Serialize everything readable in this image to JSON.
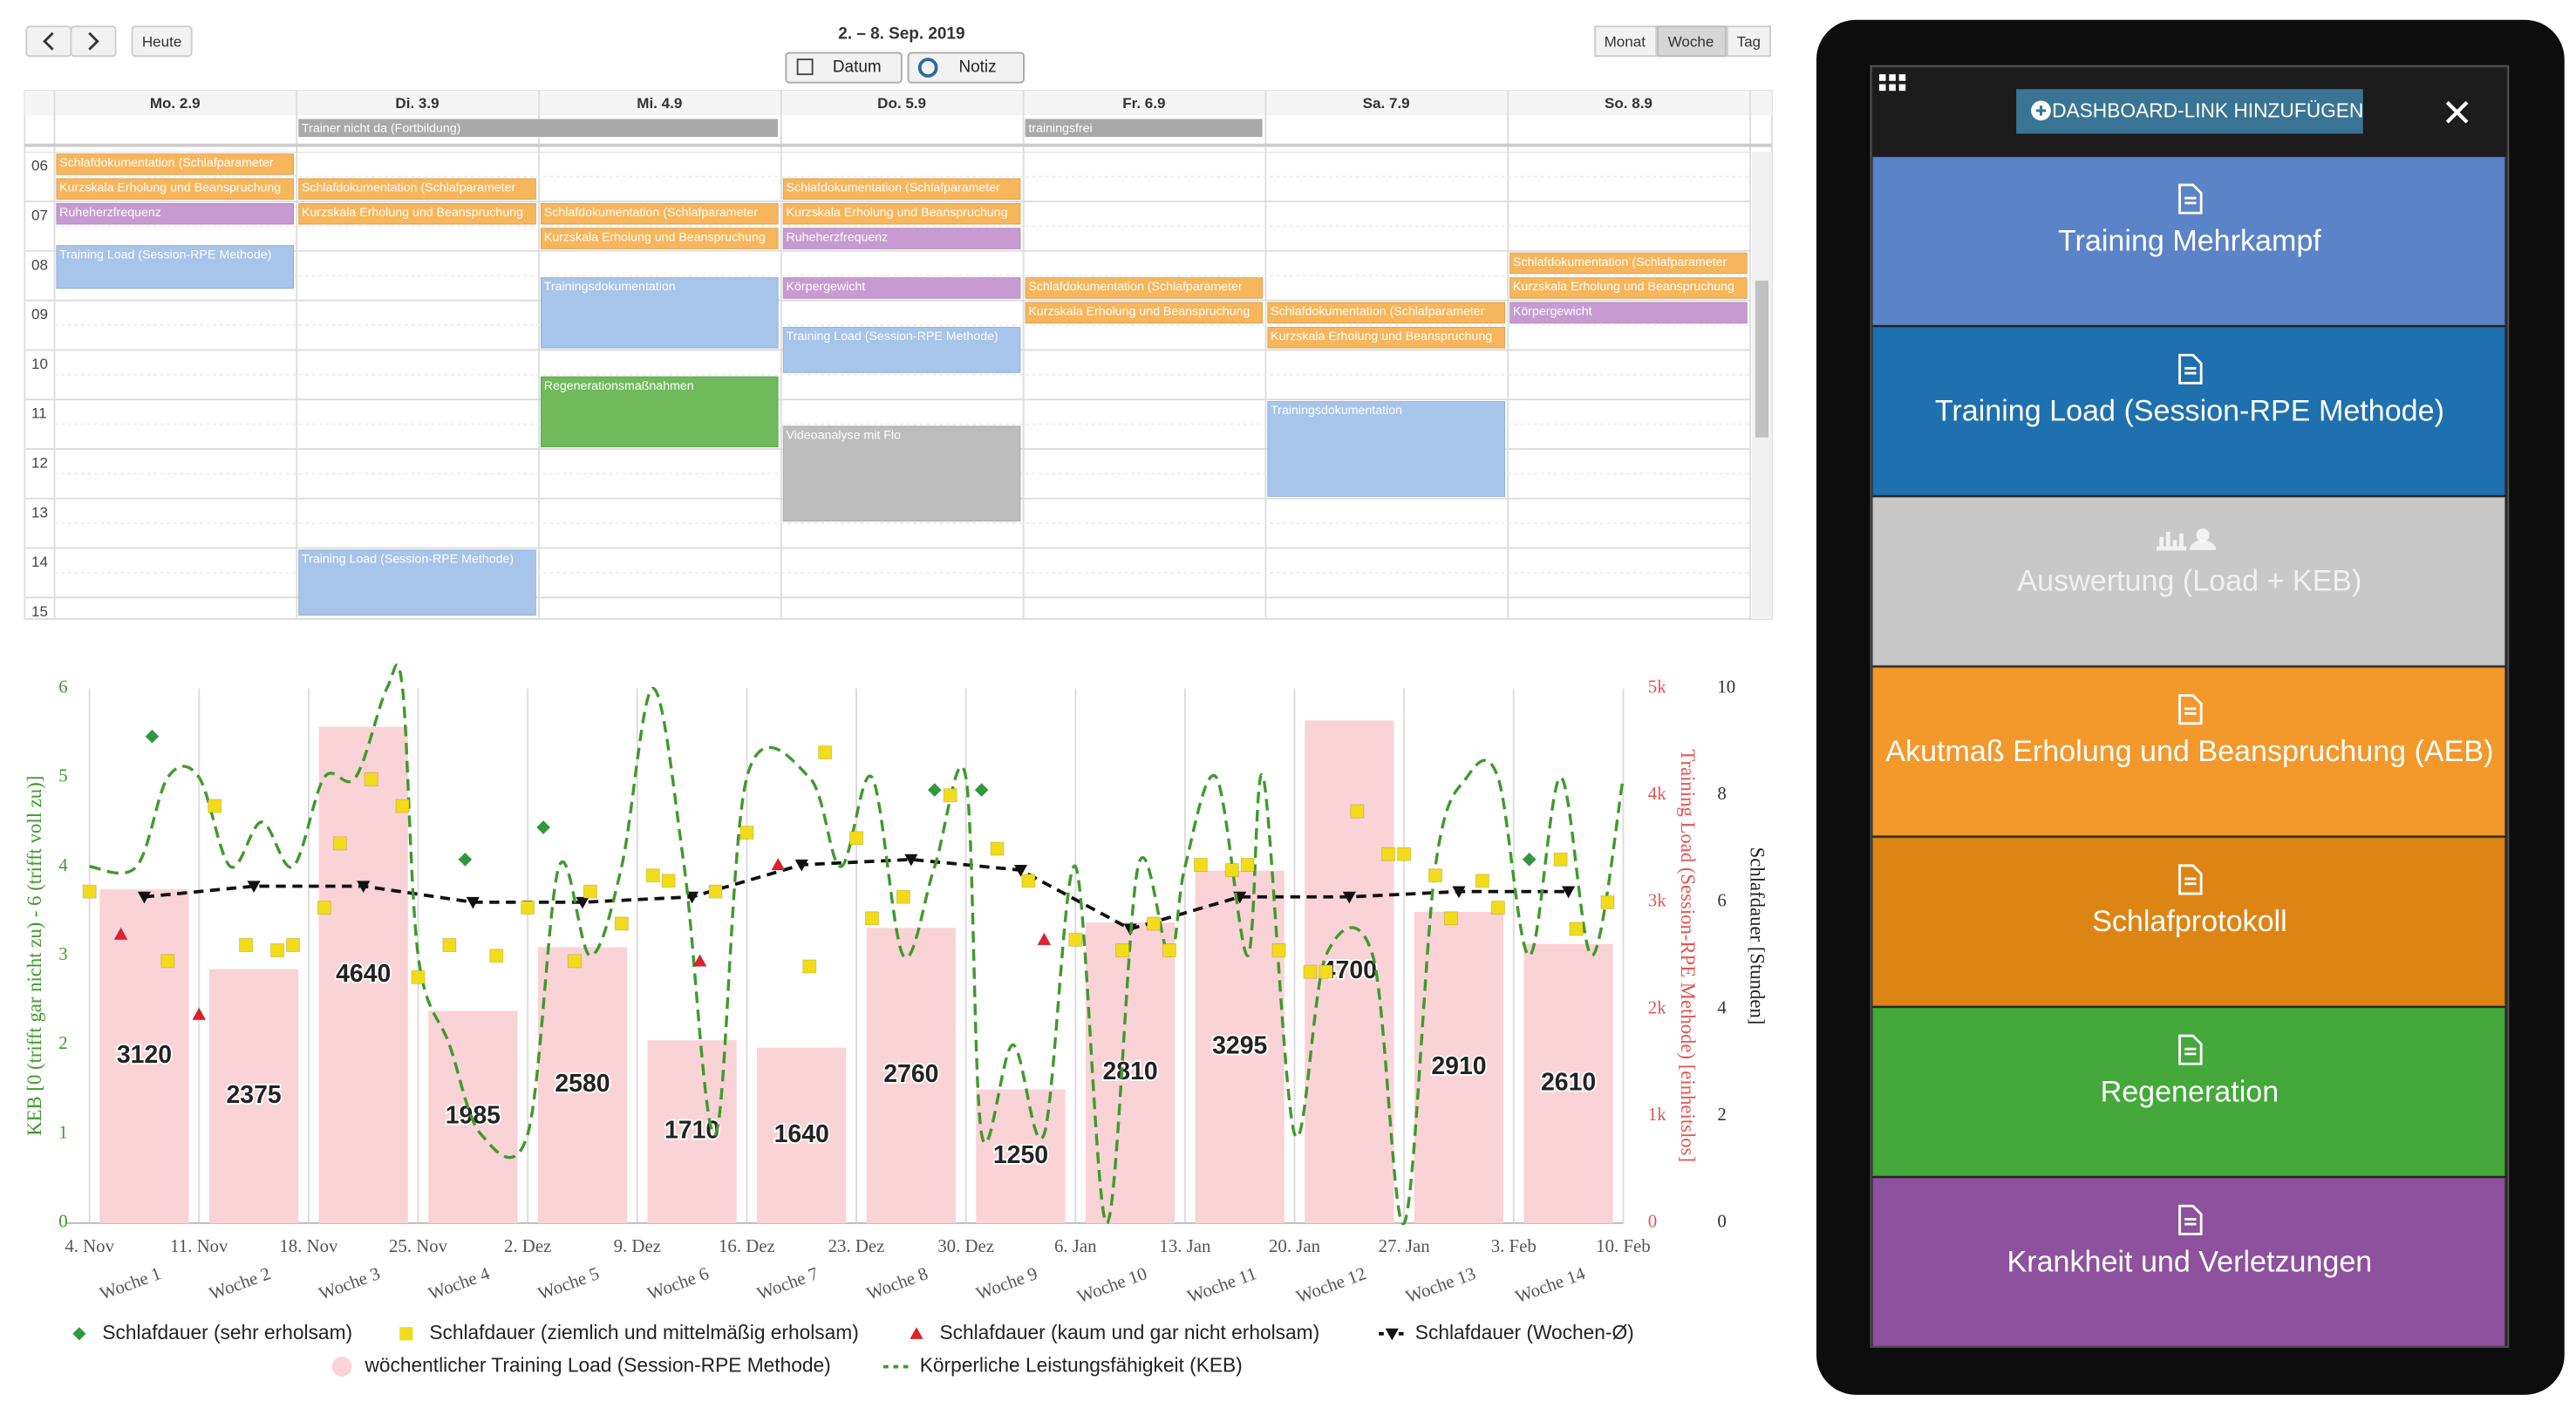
{
  "calendar": {
    "title": "2. – 8. Sep. 2019",
    "buttons": {
      "today": "Heute",
      "date": "Datum",
      "note": "Notiz",
      "month": "Monat",
      "week": "Woche",
      "day": "Tag"
    },
    "days": [
      "Mo. 2.9",
      "Di. 3.9",
      "Mi. 4.9",
      "Do. 5.9",
      "Fr. 6.9",
      "Sa. 7.9",
      "So. 8.9"
    ],
    "all_day": [
      "Trainer nicht da (Fortbildung)",
      "trainingsfrei"
    ],
    "hours": [
      "06",
      "07",
      "08",
      "09",
      "10",
      "11",
      "12",
      "13",
      "14",
      "15"
    ],
    "events": [
      "Schlafdokumentation (Schlafparameter",
      "Kurzskala Erholung und Beanspruchung",
      "Ruheherzfrequenz",
      "Training Load (Session-RPE Methode)",
      "Schlafdokumentation (Schlafparameter",
      "Kurzskala Erholung und Beanspruchung",
      "Training Load (Session-RPE Methode)",
      "Schlafdokumentation (Schlafparameter",
      "Kurzskala Erholung und Beanspruchung",
      "Trainingsdokumentation",
      "Regenerationsmaßnahmen",
      "Schlafdokumentation (Schlafparameter",
      "Kurzskala Erholung und Beanspruchung",
      "Ruheherzfrequenz",
      "Körpergewicht",
      "Training Load (Session-RPE Methode)",
      "Videoanalyse mit Flo",
      "Schlafdokumentation (Schlafparameter",
      "Kurzskala Erholung und Beanspruchung",
      "Schlafdokumentation (Schlafparameter",
      "Kurzskala Erholung und Beanspruchung",
      "Trainingsdokumentation",
      "Schlafdokumentation (Schlafparameter",
      "Kurzskala Erholung und Beanspruchung",
      "Körpergewicht"
    ]
  },
  "chart_data": {
    "type": "combo",
    "categories": [
      "Woche 1",
      "Woche 2",
      "Woche 3",
      "Woche 4",
      "Woche 5",
      "Woche 6",
      "Woche 7",
      "Woche 8",
      "Woche 9",
      "Woche 10",
      "Woche 11",
      "Woche 12",
      "Woche 13",
      "Woche 14"
    ],
    "xlim": [
      -1.5,
      98
    ],
    "xticks": [
      {
        "value": 0,
        "label": "4. Nov"
      },
      {
        "value": 7,
        "label": "11. Nov"
      },
      {
        "value": 14,
        "label": "18. Nov"
      },
      {
        "value": 21,
        "label": "25. Nov"
      },
      {
        "value": 28,
        "label": "2. Dez"
      },
      {
        "value": 35,
        "label": "9. Dez"
      },
      {
        "value": 42,
        "label": "16. Dez"
      },
      {
        "value": 49,
        "label": "23. Dez"
      },
      {
        "value": 56,
        "label": "30. Dez"
      },
      {
        "value": 63,
        "label": "6. Jan"
      },
      {
        "value": 70,
        "label": "13. Jan"
      },
      {
        "value": 77,
        "label": "20. Jan"
      },
      {
        "value": 84,
        "label": "27. Jan"
      },
      {
        "value": 91,
        "label": "3. Feb"
      },
      {
        "value": 98,
        "label": "10. Feb"
      }
    ],
    "ylim": [
      0,
      6
    ],
    "yticks": [
      0,
      1,
      2,
      3,
      4,
      5,
      6
    ],
    "ylabel": "KEB [0 (trifft gar nicht zu) - 6 (trifft voll zu)]",
    "y2lim": [
      0,
      5000
    ],
    "y2ticks": [
      0,
      {
        "value": 1000,
        "label": "1k"
      },
      {
        "value": 2000,
        "label": "2k"
      },
      {
        "value": 3000,
        "label": "3k"
      },
      {
        "value": 4000,
        "label": "4k"
      },
      {
        "value": 5000,
        "label": "5k"
      }
    ],
    "y2label": "Training Load (Session-RPE Methode) [einheitslos]",
    "y3lim": [
      0,
      10
    ],
    "y3ticks": [
      0,
      2,
      4,
      6,
      8,
      10
    ],
    "y3label": "Schlafdauer [Stunden]",
    "grid": true,
    "series": [
      {
        "name": "Schlafdauer (sehr erholsam)",
        "type": "scatter",
        "marker": "diamond",
        "color": "#2e9a3c",
        "axis": "y3",
        "x": [
          4,
          24,
          29,
          54,
          57,
          92
        ],
        "values": [
          9.1,
          6.8,
          7.4,
          8.1,
          8.1,
          6.8
        ]
      },
      {
        "name": "Schlafdauer (ziemlich und mittelmäßig erholsam)",
        "type": "scatter",
        "marker": "square",
        "color": "#f2dc1a",
        "axis": "y3",
        "x": [
          0,
          5,
          8,
          10,
          12,
          13,
          15,
          16,
          18,
          20,
          21,
          23,
          26,
          28,
          31,
          32,
          34,
          36,
          37,
          40,
          42,
          46,
          47,
          49,
          50,
          52,
          55,
          58,
          60,
          63,
          66,
          68,
          69,
          71,
          73,
          74,
          76,
          78,
          79,
          81,
          83,
          84,
          86,
          87,
          89,
          90,
          94,
          95,
          97
        ],
        "values": [
          6.2,
          4.9,
          7.8,
          5.2,
          5.1,
          5.2,
          5.9,
          7.1,
          8.3,
          7.8,
          4.6,
          5.2,
          5.0,
          5.9,
          4.9,
          6.2,
          5.6,
          6.5,
          6.4,
          6.2,
          7.3,
          4.8,
          8.8,
          7.2,
          5.7,
          6.1,
          8.0,
          7.0,
          6.4,
          5.3,
          5.1,
          5.6,
          5.1,
          6.7,
          6.6,
          6.7,
          5.1,
          4.7,
          4.7,
          7.7,
          6.9,
          6.9,
          6.5,
          5.7,
          6.4,
          5.9,
          6.8,
          5.5,
          6.0
        ]
      },
      {
        "name": "Schlafdauer (kaum und gar nicht erholsam)",
        "type": "scatter",
        "marker": "triangle",
        "color": "#e0202a",
        "axis": "y3",
        "x": [
          2,
          7,
          39,
          44,
          61
        ],
        "values": [
          5.4,
          3.9,
          4.9,
          6.7,
          5.3
        ]
      },
      {
        "name": "Schlafdauer (Wochen-Ø)",
        "type": "line",
        "marker": "triangle-down",
        "color": "#111111",
        "axis": "y3",
        "values": [
          6.1,
          6.3,
          6.3,
          6.0,
          6.0,
          6.1,
          6.7,
          6.8,
          6.6,
          5.5,
          6.1,
          6.1,
          6.2,
          6.2
        ]
      },
      {
        "name": "wöchentlicher Training Load (Session-RPE Methode)",
        "type": "bar",
        "color": "#f9d3d6",
        "axis": "y2",
        "values": [
          3120,
          2375,
          4640,
          1985,
          2580,
          1710,
          1640,
          2760,
          1250,
          2810,
          3295,
          4700,
          2910,
          2610
        ]
      },
      {
        "name": "Körperliche Leistungsfähigkeit (KEB)",
        "type": "line",
        "color": "#3f9a2c",
        "axis": "y",
        "x": [
          0,
          3,
          5,
          7,
          9,
          11,
          13,
          15,
          17,
          19,
          20,
          21,
          23,
          25,
          28,
          30,
          32,
          34,
          36,
          38,
          40,
          42,
          46,
          48,
          50,
          52,
          54,
          56,
          57,
          59,
          61,
          63,
          65,
          67,
          69,
          70,
          72,
          74,
          75,
          77,
          79,
          82,
          84,
          86,
          88,
          90,
          92,
          94,
          96,
          98
        ],
        "values": [
          4,
          4,
          5,
          5,
          4,
          4.5,
          4,
          5,
          5,
          6,
          6,
          3,
          2,
          1,
          1,
          4,
          3,
          4,
          6,
          4,
          1,
          5,
          5,
          4,
          5,
          3,
          4,
          5,
          1,
          2,
          1,
          4,
          0,
          4,
          3,
          4,
          5,
          3,
          5,
          1,
          3,
          3,
          0,
          4,
          5,
          5,
          3,
          5,
          3,
          5
        ]
      }
    ]
  },
  "sidebar": {
    "add_button": "DASHBOARD-LINK HINZUFÜGEN",
    "tiles": [
      "Training Mehrkampf",
      "Training Load (Session-RPE Methode)",
      "Auswertung (Load + KEB)",
      "Akutmaß Erholung und Beanspruchung (AEB)",
      "Schlafprotokoll",
      "Regeneration",
      "Krankheit und Verletzungen"
    ]
  }
}
